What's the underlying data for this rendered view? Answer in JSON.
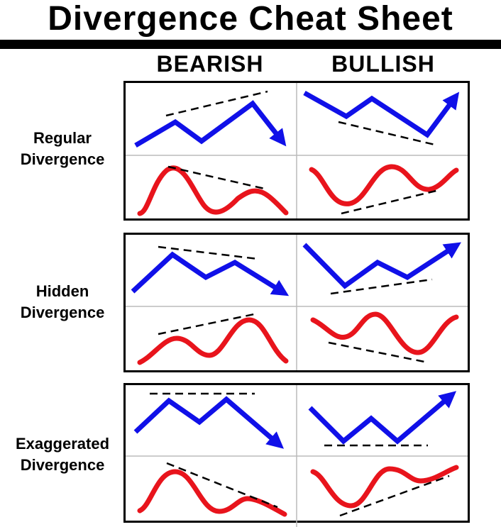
{
  "title": "Divergence Cheat Sheet",
  "columns": {
    "bearish": "BEARISH",
    "bullish": "BULLISH"
  },
  "rows": [
    {
      "line1": "Regular",
      "line2": "Divergence"
    },
    {
      "line1": "Hidden",
      "line2": "Divergence"
    },
    {
      "line1": "Exaggerated",
      "line2": "Divergence"
    }
  ],
  "colors": {
    "price": "#1010e8",
    "oscillator": "#e8141c",
    "trendline": "#000000",
    "grid": "#bbbbbb"
  }
}
